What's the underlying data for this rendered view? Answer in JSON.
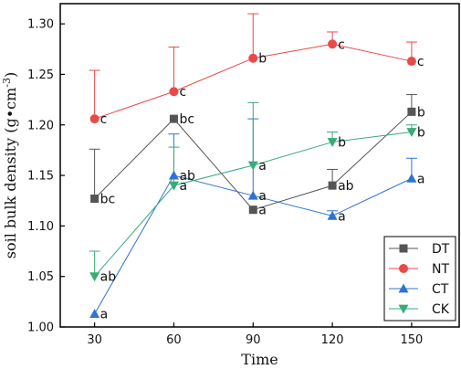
{
  "chart_data": {
    "type": "line",
    "xlabel": "Time",
    "ylabel_main": "soil bulk density (g•cm",
    "ylabel_exponent": "-3",
    "ylabel_close": ")",
    "x": [
      30,
      60,
      90,
      120,
      150
    ],
    "xlim": [
      17,
      168
    ],
    "ylim": [
      1.0,
      1.32
    ],
    "x_ticks": [
      30,
      60,
      90,
      120,
      150
    ],
    "y_ticks": [
      1.0,
      1.05,
      1.1,
      1.15,
      1.2,
      1.25,
      1.3
    ],
    "y_tick_labels": [
      "1.00",
      "1.05",
      "1.10",
      "1.15",
      "1.20",
      "1.25",
      "1.30"
    ],
    "legend_position": "bottom-right",
    "grid": false,
    "series": [
      {
        "name": "DT",
        "color": "#555555",
        "marker": "square",
        "values": [
          1.127,
          1.206,
          1.116,
          1.14,
          1.213
        ],
        "error": [
          0.049,
          0.0,
          0.0,
          0.016,
          0.017
        ],
        "labels": [
          "bc",
          "bc",
          "a",
          "ab",
          "b"
        ]
      },
      {
        "name": "NT",
        "color": "#e84a4a",
        "marker": "circle",
        "values": [
          1.206,
          1.233,
          1.266,
          1.28,
          1.263
        ],
        "error": [
          0.048,
          0.044,
          0.044,
          0.012,
          0.019
        ],
        "labels": [
          "c",
          "c",
          "b",
          "c",
          "c"
        ]
      },
      {
        "name": "CT",
        "color": "#2f74d0",
        "marker": "triangle-up",
        "values": [
          1.013,
          1.15,
          1.13,
          1.11,
          1.147
        ],
        "error": [
          0.0,
          0.041,
          0.076,
          0.005,
          0.02
        ],
        "labels": [
          "a",
          "ab",
          "a",
          "a",
          "a"
        ]
      },
      {
        "name": "CK",
        "color": "#3aaa78",
        "marker": "triangle-down",
        "values": [
          1.05,
          1.14,
          1.16,
          1.183,
          1.193
        ],
        "error": [
          0.025,
          0.038,
          0.062,
          0.01,
          0.007
        ],
        "labels": [
          "ab",
          "a",
          "a",
          "b",
          "b"
        ]
      }
    ]
  }
}
